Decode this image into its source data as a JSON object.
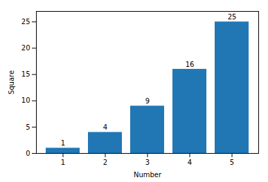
{
  "chart_data": {
    "type": "bar",
    "categories": [
      1,
      2,
      3,
      4,
      5
    ],
    "values": [
      1,
      4,
      9,
      16,
      25
    ],
    "color": "#2077b4",
    "xlabel": "Number",
    "ylabel": "Square",
    "ylim": [
      0,
      27
    ],
    "yticks": [
      0,
      5,
      10,
      15,
      20,
      25
    ],
    "grid": false,
    "data_labels": true
  }
}
